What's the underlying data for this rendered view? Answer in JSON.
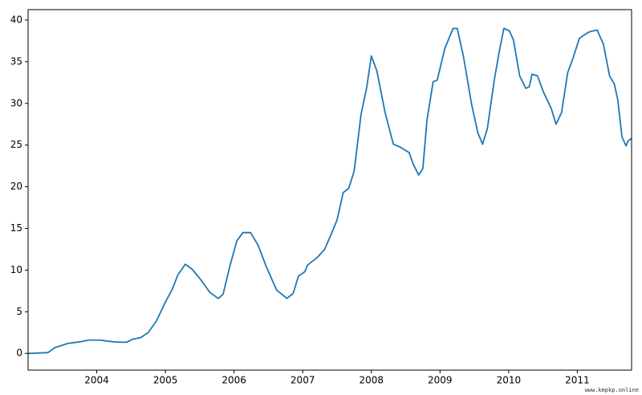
{
  "chart_data": {
    "type": "line",
    "x": [
      2003.0,
      2003.29,
      2003.39,
      2003.58,
      2003.76,
      2003.88,
      2004.05,
      2004.23,
      2004.34,
      2004.44,
      2004.52,
      2004.64,
      2004.75,
      2004.87,
      2004.99,
      2005.1,
      2005.18,
      2005.29,
      2005.39,
      2005.51,
      2005.65,
      2005.77,
      2005.84,
      2005.94,
      2006.04,
      2006.13,
      2006.24,
      2006.35,
      2006.47,
      2006.62,
      2006.77,
      2006.86,
      2006.94,
      2007.03,
      2007.07,
      2007.21,
      2007.32,
      2007.42,
      2007.5,
      2007.59,
      2007.67,
      2007.75,
      2007.85,
      2007.93,
      2008.0,
      2008.08,
      2008.2,
      2008.32,
      2008.41,
      2008.55,
      2008.61,
      2008.69,
      2008.75,
      2008.81,
      2008.9,
      2008.96,
      2009.07,
      2009.19,
      2009.25,
      2009.34,
      2009.46,
      2009.55,
      2009.62,
      2009.69,
      2009.79,
      2009.86,
      2009.93,
      2010.01,
      2010.07,
      2010.16,
      2010.25,
      2010.3,
      2010.34,
      2010.42,
      2010.51,
      2010.62,
      2010.69,
      2010.77,
      2010.86,
      2010.94,
      2011.03,
      2011.08,
      2011.18,
      2011.29,
      2011.38,
      2011.47,
      2011.54,
      2011.59,
      2011.65,
      2011.71,
      2011.74,
      2011.79
    ],
    "series": [
      {
        "color": "#1f77b4",
        "values": [
          0,
          0.1,
          0.7,
          1.2,
          1.4,
          1.6,
          1.6,
          1.4,
          1.35,
          1.35,
          1.7,
          1.9,
          2.5,
          3.9,
          6.0,
          7.7,
          9.4,
          10.7,
          10.1,
          8.9,
          7.3,
          6.6,
          7.1,
          10.5,
          13.5,
          14.5,
          14.5,
          13.0,
          10.4,
          7.6,
          6.6,
          7.2,
          9.3,
          9.8,
          10.6,
          11.5,
          12.5,
          14.4,
          16.0,
          19.3,
          19.8,
          21.9,
          28.7,
          31.8,
          35.7,
          33.9,
          28.9,
          25.1,
          24.8,
          24.1,
          22.7,
          21.4,
          22.2,
          28.0,
          32.6,
          32.8,
          36.6,
          39.0,
          39.0,
          35.7,
          29.9,
          26.5,
          25.1,
          27.0,
          32.8,
          36.1,
          39.0,
          38.7,
          37.6,
          33.3,
          31.8,
          32.0,
          33.5,
          33.3,
          31.3,
          29.4,
          27.5,
          28.9,
          33.7,
          35.5,
          37.8,
          38.1,
          38.6,
          38.8,
          37.1,
          33.3,
          32.3,
          30.4,
          26.0,
          24.9,
          25.5,
          25.8
        ]
      }
    ],
    "xlim": [
      2003.0,
      2011.79
    ],
    "xticks": [
      2004,
      2005,
      2006,
      2007,
      2008,
      2009,
      2010,
      2011
    ],
    "ylim": [
      -2,
      41.25
    ],
    "yticks": [
      0,
      5,
      10,
      15,
      20,
      25,
      30,
      35,
      40
    ],
    "grid": false,
    "watermark": "www.kmpkp.online"
  }
}
